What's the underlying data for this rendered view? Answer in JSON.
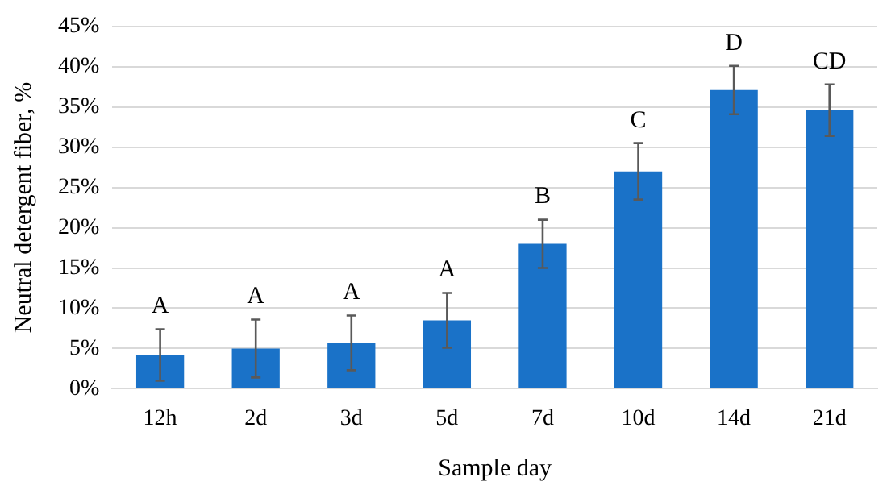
{
  "chart_data": {
    "type": "bar",
    "xlabel": "Sample day",
    "ylabel": "Neutral detergent fiber, %",
    "categories": [
      "12h",
      "2d",
      "3d",
      "5d",
      "7d",
      "10d",
      "14d",
      "21d"
    ],
    "values": [
      4.2,
      5.0,
      5.7,
      8.5,
      18.0,
      27.0,
      37.1,
      34.6
    ],
    "errors": [
      3.2,
      3.6,
      3.4,
      3.4,
      3.0,
      3.5,
      3.0,
      3.2
    ],
    "color": "#1a72c8",
    "ylim": [
      0,
      45
    ],
    "yticks": [
      {
        "value": 0,
        "label": "0%"
      },
      {
        "value": 5,
        "label": "5%"
      },
      {
        "value": 10,
        "label": "10%"
      },
      {
        "value": 15,
        "label": "15%"
      },
      {
        "value": 20,
        "label": "20%"
      },
      {
        "value": 25,
        "label": "25%"
      },
      {
        "value": 30,
        "label": "30%"
      },
      {
        "value": 35,
        "label": "35%"
      },
      {
        "value": 40,
        "label": "40%"
      },
      {
        "value": 45,
        "label": "45%"
      }
    ],
    "grid": "y",
    "annotations": [
      {
        "text": "A",
        "x": "12h",
        "y": 4.2
      },
      {
        "text": "A",
        "x": "2d",
        "y": 5.0
      },
      {
        "text": "A",
        "x": "3d",
        "y": 5.7
      },
      {
        "text": "A",
        "x": "5d",
        "y": 8.5
      },
      {
        "text": "B",
        "x": "7d",
        "y": 18.0
      },
      {
        "text": "C",
        "x": "10d",
        "y": 27.0
      },
      {
        "text": "D",
        "x": "14d",
        "y": 37.1
      },
      {
        "text": "CD",
        "x": "21d",
        "y": 34.6
      }
    ]
  }
}
